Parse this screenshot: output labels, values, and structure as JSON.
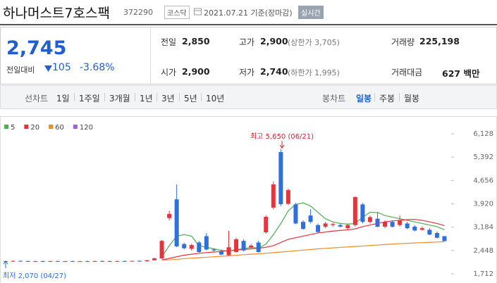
{
  "header": {
    "title": "하나머스트7호스팩",
    "code": "372290",
    "market": "코스닥",
    "date": "2021.07.21 기준(장마감)",
    "realtime": "실시간"
  },
  "quote": {
    "price": "2,745",
    "change_label": "전일대비",
    "change": "105",
    "change_rate": "-3.68%"
  },
  "stats": [
    {
      "label": "전일",
      "value": "2,850"
    },
    {
      "label": "고가",
      "value": "2,900",
      "note": "(상한가 3,705)"
    },
    {
      "label": "거래량",
      "value": "225,198"
    },
    {
      "label": "시가",
      "value": "2,900"
    },
    {
      "label": "저가",
      "value": "2,740",
      "note": "(하한가 1,995)"
    },
    {
      "label": "거래대금",
      "value": "627 백만"
    }
  ],
  "tabs": {
    "line": [
      "선차트",
      "1일",
      "1주일",
      "3개월",
      "1년",
      "3년",
      "5년",
      "10년"
    ],
    "candle": [
      "봉차트",
      "일봉",
      "주봉",
      "월봉"
    ],
    "active_candle": 1
  },
  "chart_data": {
    "type": "candlestick",
    "open": [
      2110,
      2100,
      2120,
      2110,
      2100,
      2110,
      2100,
      2115,
      2105,
      2110,
      2100,
      2110,
      2105,
      2115,
      2110,
      2100,
      2115,
      2110,
      2120,
      2110,
      2140,
      2200,
      3470,
      4060,
      2650,
      2500,
      2700,
      2900,
      2480,
      2420,
      2300,
      2400,
      2750,
      2550,
      2700,
      3020,
      3800,
      5550,
      3920,
      3900,
      3350,
      3550,
      3250,
      3200,
      3250,
      3250,
      3150,
      3250,
      3900,
      3350,
      3450,
      3200,
      3350,
      3250,
      3300,
      3200,
      3100,
      3100,
      3000,
      2900
    ],
    "high": [
      2130,
      2130,
      2140,
      2130,
      2120,
      2130,
      2125,
      2135,
      2120,
      2130,
      2120,
      2130,
      2125,
      2140,
      2130,
      2125,
      2135,
      2130,
      2140,
      2150,
      2220,
      2780,
      3700,
      4530,
      2700,
      2660,
      2750,
      3000,
      2520,
      2480,
      3070,
      2850,
      2800,
      2650,
      2750,
      3550,
      4620,
      5650,
      4400,
      3950,
      3400,
      3750,
      3300,
      3350,
      3320,
      3300,
      3300,
      4160,
      3950,
      3550,
      3650,
      3400,
      3400,
      3550,
      3350,
      3250,
      3200,
      3150,
      3050,
      2900
    ],
    "low": [
      2070,
      2090,
      2100,
      2090,
      2085,
      2095,
      2090,
      2100,
      2090,
      2095,
      2090,
      2100,
      2090,
      2100,
      2095,
      2090,
      2100,
      2095,
      2100,
      2100,
      2130,
      2180,
      3400,
      2550,
      2480,
      2450,
      2380,
      2450,
      2400,
      2300,
      2280,
      2380,
      2420,
      2500,
      2380,
      2980,
      3750,
      3850,
      3880,
      3280,
      3100,
      3300,
      3000,
      3150,
      3200,
      3180,
      3120,
      3200,
      3300,
      3300,
      3180,
      3150,
      3180,
      3200,
      3120,
      3050,
      3080,
      2930,
      2830,
      2740
    ],
    "close": [
      2100,
      2120,
      2110,
      2100,
      2110,
      2100,
      2115,
      2105,
      2110,
      2100,
      2110,
      2105,
      2115,
      2110,
      2100,
      2115,
      2110,
      2120,
      2110,
      2140,
      2200,
      2750,
      3600,
      2580,
      2520,
      2620,
      2400,
      2480,
      2450,
      2320,
      2550,
      2800,
      2450,
      2600,
      2400,
      3510,
      4530,
      3910,
      4350,
      3300,
      3130,
      3350,
      3030,
      3300,
      3280,
      3200,
      3250,
      4130,
      3350,
      3500,
      3200,
      3350,
      3200,
      3400,
      3150,
      3080,
      3150,
      2950,
      2850,
      2745
    ],
    "up_color": "#e8323c",
    "down_color": "#2f6fdc",
    "series": [
      {
        "name": "5",
        "color": "#4caf50",
        "values": [
          null,
          null,
          null,
          null,
          null,
          null,
          null,
          null,
          null,
          null,
          null,
          null,
          null,
          null,
          null,
          null,
          null,
          null,
          null,
          null,
          null,
          2250,
          2600,
          2900,
          2950,
          2900,
          2600,
          2550,
          2500,
          2450,
          2430,
          2480,
          2500,
          2550,
          2520,
          2650,
          2950,
          3300,
          3700,
          3900,
          3950,
          3850,
          3650,
          3450,
          3350,
          3300,
          3280,
          3300,
          3500,
          3650,
          3650,
          3550,
          3500,
          3450,
          3400,
          3350,
          3300,
          3250,
          3200,
          3100
        ]
      },
      {
        "name": "20",
        "color": "#e8323c",
        "values": [
          null,
          null,
          null,
          null,
          null,
          null,
          null,
          null,
          null,
          null,
          null,
          null,
          null,
          null,
          null,
          null,
          null,
          null,
          null,
          null,
          null,
          2150,
          2200,
          2250,
          2300,
          2330,
          2360,
          2380,
          2400,
          2420,
          2440,
          2460,
          2480,
          2500,
          2520,
          2550,
          2600,
          2700,
          2800,
          2850,
          2900,
          2950,
          3000,
          3030,
          3060,
          3080,
          3100,
          3130,
          3200,
          3250,
          3300,
          3350,
          3380,
          3400,
          3420,
          3430,
          3400,
          3350,
          3300,
          3230
        ]
      },
      {
        "name": "60",
        "color": "#f08c2a",
        "values": [
          null,
          null,
          null,
          null,
          null,
          null,
          null,
          null,
          null,
          null,
          null,
          null,
          null,
          null,
          null,
          null,
          null,
          null,
          null,
          null,
          null,
          2140,
          2155,
          2170,
          2190,
          2205,
          2220,
          2235,
          2250,
          2265,
          2280,
          2300,
          2315,
          2330,
          2345,
          2360,
          2380,
          2400,
          2420,
          2440,
          2460,
          2480,
          2500,
          2515,
          2530,
          2545,
          2560,
          2575,
          2590,
          2605,
          2620,
          2635,
          2650,
          2665,
          2675,
          2685,
          2695,
          2705,
          2715,
          2725
        ]
      },
      {
        "name": "120",
        "color": "#9b63d3"
      }
    ],
    "ylim": [
      1712,
      6128
    ],
    "yticks": [
      {
        "value": 6128,
        "label": "6,128"
      },
      {
        "value": 5392,
        "label": "5,392"
      },
      {
        "value": 4656,
        "label": "4,656"
      },
      {
        "value": 3920,
        "label": "3,920"
      },
      {
        "value": 3184,
        "label": "3,184"
      },
      {
        "value": 2448,
        "label": "2,448"
      },
      {
        "value": 1712,
        "label": "1,712"
      }
    ],
    "high_label": "최고 5,650 (06/21)",
    "low_label": "최저 2,070 (04/27)"
  }
}
